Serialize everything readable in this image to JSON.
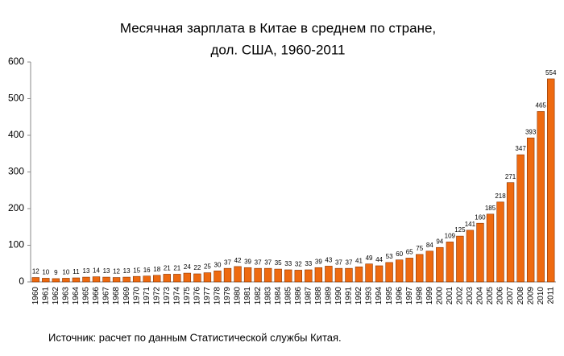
{
  "chart_data": {
    "type": "bar",
    "title": [
      "Месячная зарплата в Китае в среднем по стране,",
      "дол. США, 1960-2011"
    ],
    "source": "Источник: расчет по данным Статистической службы Китая.",
    "categories": [
      "1960",
      "1961",
      "1962",
      "1963",
      "1964",
      "1965",
      "1966",
      "1967",
      "1968",
      "1969",
      "1970",
      "1971",
      "1972",
      "1973",
      "1974",
      "1975",
      "1976",
      "1977",
      "1978",
      "1979",
      "1980",
      "1981",
      "1982",
      "1983",
      "1984",
      "1985",
      "1986",
      "1987",
      "1988",
      "1989",
      "1990",
      "1991",
      "1992",
      "1993",
      "1994",
      "1995",
      "1996",
      "1997",
      "1998",
      "1999",
      "2000",
      "2001",
      "2002",
      "2003",
      "2004",
      "2005",
      "2006",
      "2007",
      "2008",
      "2009",
      "2010",
      "2011"
    ],
    "values": [
      12,
      10,
      9,
      10,
      11,
      13,
      14,
      13,
      12,
      13,
      15,
      16,
      18,
      21,
      21,
      24,
      22,
      25,
      30,
      37,
      42,
      39,
      37,
      37,
      35,
      33,
      32,
      33,
      39,
      43,
      37,
      37,
      41,
      49,
      44,
      53,
      60,
      65,
      75,
      84,
      94,
      109,
      125,
      141,
      160,
      185,
      218,
      271,
      347,
      393,
      465,
      554
    ],
    "color": "#ee6a10",
    "ylim": [
      0,
      600
    ],
    "yticks": [
      0,
      100,
      200,
      300,
      400,
      500,
      600
    ],
    "grid": false
  }
}
